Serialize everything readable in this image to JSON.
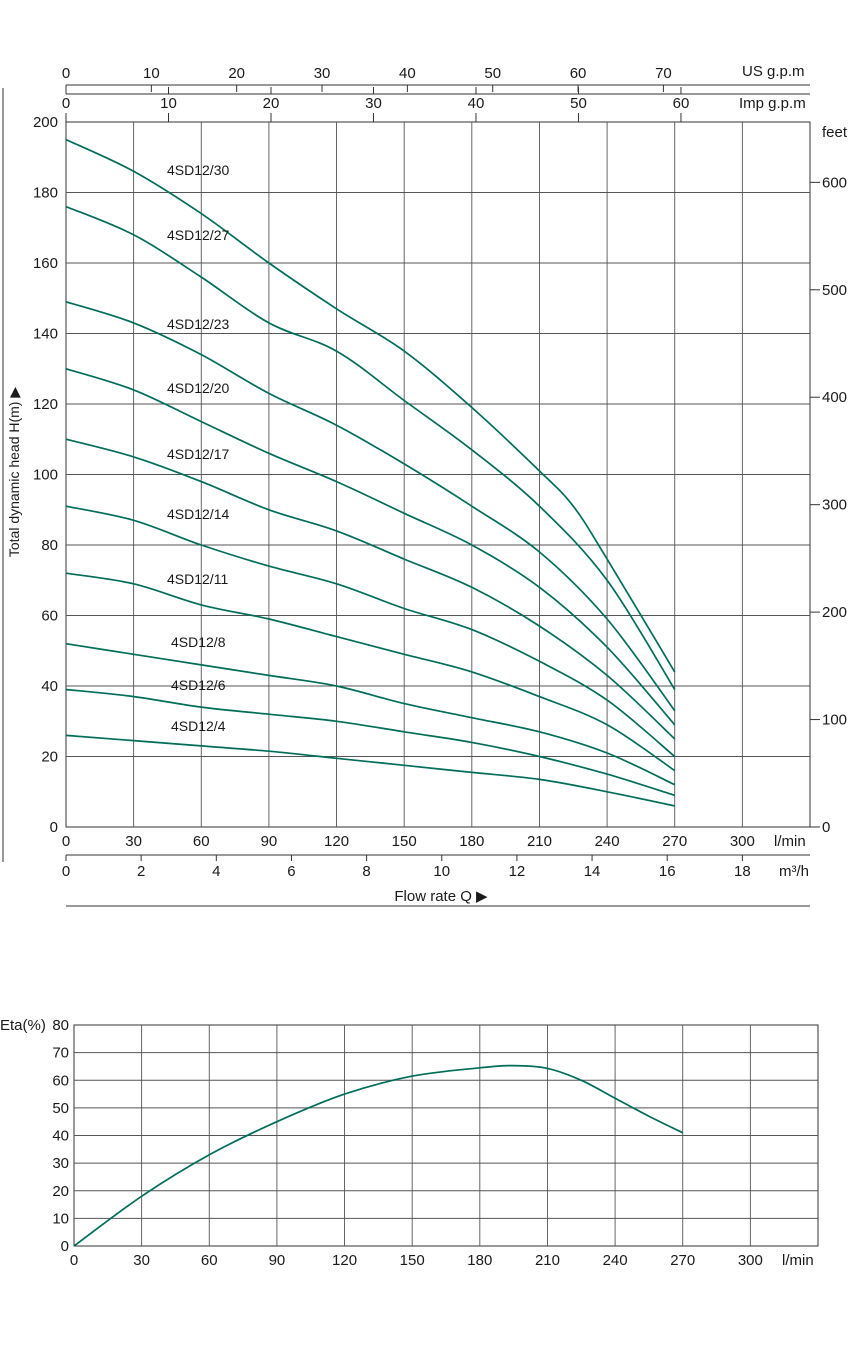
{
  "chart_data": [
    {
      "type": "line",
      "ylabel": "Total dynamic head H(m) ▶",
      "xlabel": "Flow rate Q ▶",
      "ylim": [
        0,
        200
      ],
      "yticks": [
        0,
        20,
        40,
        60,
        80,
        100,
        120,
        140,
        160,
        180,
        200
      ],
      "xlim": [
        0,
        330
      ],
      "xticks": [
        0,
        30,
        60,
        90,
        120,
        150,
        180,
        210,
        240,
        270,
        300
      ],
      "xunit": "l/min",
      "feet_axis": {
        "label": "feet",
        "ticks": [
          0,
          100,
          200,
          300,
          400,
          500,
          600
        ]
      },
      "us_gpm_axis": {
        "label": "US g.p.m",
        "ticks": [
          0,
          10,
          20,
          30,
          40,
          50,
          60,
          70
        ]
      },
      "imp_gpm_axis": {
        "label": "Imp g.p.m",
        "ticks": [
          0,
          10,
          20,
          30,
          40,
          50,
          60
        ]
      },
      "m3h_axis": {
        "label": "m³/h",
        "ticks": [
          0,
          2,
          4,
          6,
          8,
          10,
          12,
          14,
          16,
          18
        ]
      },
      "grid": true,
      "series": [
        {
          "name": "4SD12/30",
          "x": [
            0,
            30,
            60,
            90,
            120,
            150,
            180,
            210,
            225,
            240,
            270
          ],
          "values": [
            195,
            186,
            174,
            160,
            147,
            135,
            119,
            101,
            91,
            76,
            44
          ]
        },
        {
          "name": "4SD12/27",
          "x": [
            0,
            30,
            60,
            90,
            120,
            150,
            180,
            210,
            240,
            270
          ],
          "values": [
            176,
            168,
            156,
            143,
            135,
            121,
            107,
            91,
            70,
            39
          ]
        },
        {
          "name": "4SD12/23",
          "x": [
            0,
            30,
            60,
            90,
            120,
            150,
            180,
            210,
            240,
            270
          ],
          "values": [
            149,
            143,
            134,
            123,
            114,
            103,
            91,
            78,
            59,
            33
          ]
        },
        {
          "name": "4SD12/20",
          "x": [
            0,
            30,
            60,
            90,
            120,
            150,
            180,
            210,
            240,
            270
          ],
          "values": [
            130,
            124,
            115,
            106,
            98,
            89,
            80,
            68,
            51,
            29
          ]
        },
        {
          "name": "4SD12/17",
          "x": [
            0,
            30,
            60,
            90,
            120,
            150,
            180,
            210,
            240,
            270
          ],
          "values": [
            110,
            105,
            98,
            90,
            84,
            76,
            68,
            57,
            43,
            25
          ]
        },
        {
          "name": "4SD12/14",
          "x": [
            0,
            30,
            60,
            90,
            120,
            150,
            180,
            210,
            240,
            270
          ],
          "values": [
            91,
            87,
            80,
            74,
            69,
            62,
            56,
            47,
            36,
            20
          ]
        },
        {
          "name": "4SD12/11",
          "x": [
            0,
            30,
            60,
            90,
            120,
            150,
            180,
            210,
            240,
            270
          ],
          "values": [
            72,
            69,
            63,
            59,
            54,
            49,
            44,
            37,
            29,
            16
          ]
        },
        {
          "name": "4SD12/8",
          "x": [
            0,
            30,
            60,
            90,
            120,
            150,
            180,
            210,
            240,
            270
          ],
          "values": [
            52,
            49,
            46,
            43,
            40,
            35,
            31,
            27,
            21,
            12
          ]
        },
        {
          "name": "4SD12/6",
          "x": [
            0,
            30,
            60,
            90,
            120,
            150,
            180,
            210,
            240,
            270
          ],
          "values": [
            39,
            37,
            34,
            32,
            30,
            27,
            24,
            20,
            15,
            9
          ]
        },
        {
          "name": "4SD12/4",
          "x": [
            0,
            30,
            60,
            90,
            120,
            150,
            180,
            210,
            240,
            270
          ],
          "values": [
            26,
            24.5,
            23,
            21.5,
            19.5,
            17.5,
            15.5,
            13.5,
            10,
            6
          ]
        }
      ]
    },
    {
      "type": "line",
      "ylabel": "Eta(%)",
      "ylim": [
        0,
        80
      ],
      "yticks": [
        0,
        10,
        20,
        30,
        40,
        50,
        60,
        70,
        80
      ],
      "xlim": [
        0,
        330
      ],
      "xticks": [
        0,
        30,
        60,
        90,
        120,
        150,
        180,
        210,
        240,
        270,
        300
      ],
      "xunit": "l/min",
      "grid": true,
      "series": [
        {
          "x": [
            0,
            30,
            60,
            90,
            120,
            150,
            180,
            195,
            210,
            225,
            240,
            255,
            270
          ],
          "values": [
            0,
            18,
            33,
            45,
            55,
            61.5,
            64.5,
            65.3,
            64.3,
            60,
            53.5,
            47,
            41
          ]
        }
      ]
    }
  ]
}
